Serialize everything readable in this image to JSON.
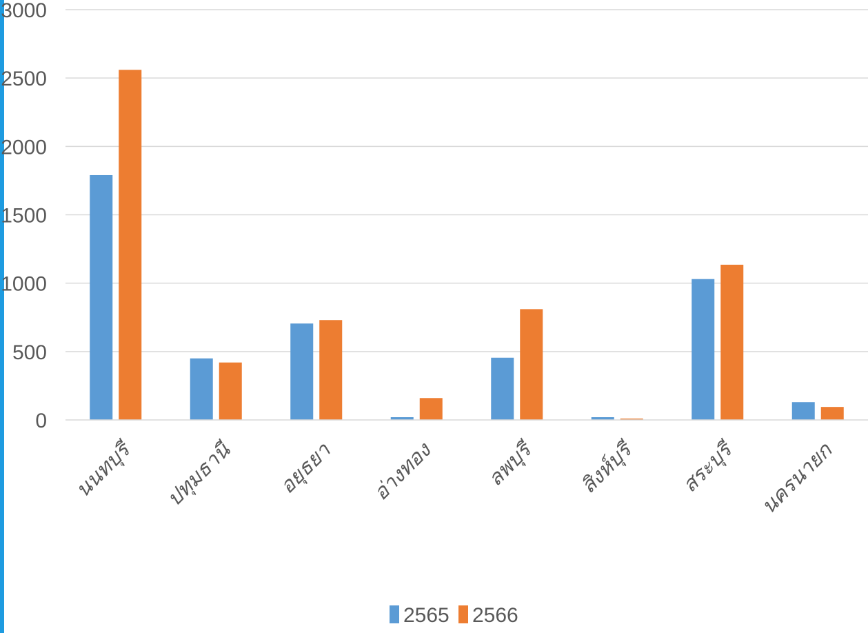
{
  "chart_data": {
    "type": "bar",
    "categories": [
      "นนทบุรี",
      "ปทุมธานี",
      "อยุธยา",
      "อ่างทอง",
      "ลพบุรี",
      "สิงห์บุรี",
      "สระบุรี",
      "นครนายก"
    ],
    "series": [
      {
        "name": "2565",
        "color": "#5b9bd5",
        "values": [
          1790,
          450,
          705,
          20,
          455,
          20,
          1030,
          130
        ]
      },
      {
        "name": "2566",
        "color": "#ed7d31",
        "values": [
          2560,
          420,
          730,
          160,
          810,
          10,
          1135,
          95
        ]
      }
    ],
    "yticks": [
      0,
      500,
      1000,
      1500,
      2000,
      2500,
      3000
    ],
    "ylim": [
      0,
      3000
    ],
    "grid": true,
    "legend": "bottom-center"
  }
}
